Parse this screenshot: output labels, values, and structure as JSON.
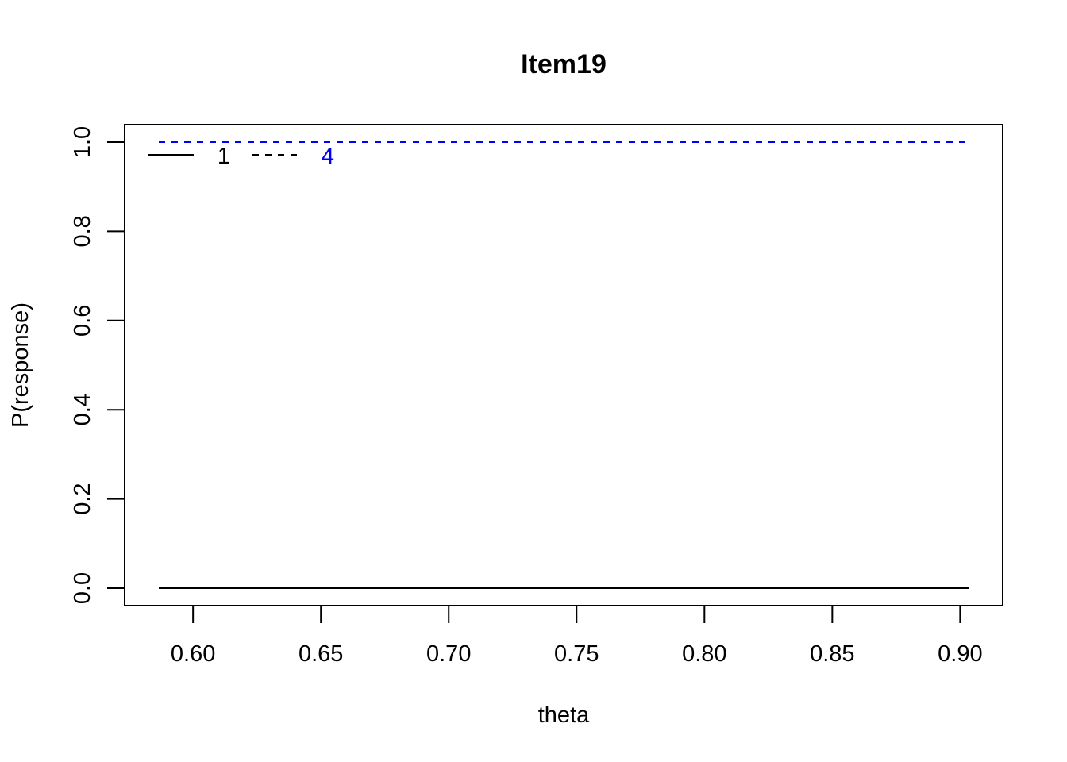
{
  "chart_data": {
    "type": "line",
    "title": "Item19",
    "xlabel": "theta",
    "ylabel": "P(response)",
    "xlim": [
      0.5866,
      0.9033
    ],
    "ylim": [
      0.0,
      1.0
    ],
    "x_ticks": [
      "0.60",
      "0.65",
      "0.70",
      "0.75",
      "0.80",
      "0.85",
      "0.90"
    ],
    "x_tick_values": [
      0.6,
      0.65,
      0.7,
      0.75,
      0.8,
      0.85,
      0.9
    ],
    "y_ticks": [
      "0.0",
      "0.2",
      "0.4",
      "0.6",
      "0.8",
      "1.0"
    ],
    "y_tick_values": [
      0.0,
      0.2,
      0.4,
      0.6,
      0.8,
      1.0
    ],
    "grid": false,
    "legend_position": "top-left",
    "series": [
      {
        "name": "1",
        "color": "#000000",
        "dash": "solid",
        "x": [
          0.5866,
          0.9033
        ],
        "y": [
          0.0,
          0.0
        ]
      },
      {
        "name": "4",
        "color": "#0000ff",
        "dash": "dashed",
        "x": [
          0.5866,
          0.9033
        ],
        "y": [
          1.0,
          1.0
        ]
      }
    ]
  }
}
